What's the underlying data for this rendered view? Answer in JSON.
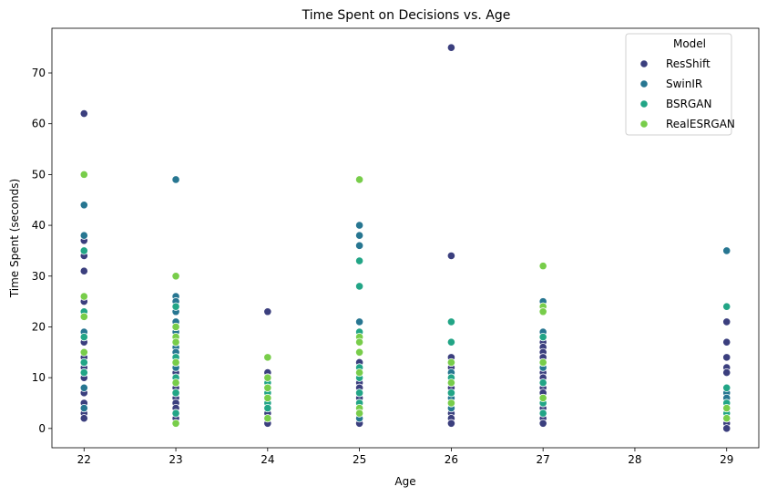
{
  "chart_data": {
    "type": "scatter",
    "title": "Time Spent on Decisions vs. Age",
    "xlabel": "Age",
    "ylabel": "Time Spent (seconds)",
    "xlim": [
      21.65,
      29.35
    ],
    "ylim": [
      -3.8,
      78.8
    ],
    "xticks": [
      22,
      23,
      24,
      25,
      26,
      27,
      28,
      29
    ],
    "yticks": [
      0,
      10,
      20,
      30,
      40,
      50,
      60,
      70
    ],
    "grid": false,
    "legend": {
      "title": "Model",
      "placement": "top-right"
    },
    "series": [
      {
        "name": "ResShift",
        "color": "#3b3f7e",
        "points": [
          [
            22,
            62
          ],
          [
            22,
            37
          ],
          [
            22,
            34
          ],
          [
            22,
            31
          ],
          [
            22,
            25
          ],
          [
            22,
            17
          ],
          [
            22,
            14
          ],
          [
            22,
            12
          ],
          [
            22,
            11
          ],
          [
            22,
            10
          ],
          [
            22,
            7
          ],
          [
            22,
            5
          ],
          [
            22,
            3
          ],
          [
            22,
            2
          ],
          [
            23,
            11
          ],
          [
            23,
            9
          ],
          [
            23,
            8
          ],
          [
            23,
            6
          ],
          [
            23,
            5
          ],
          [
            23,
            4
          ],
          [
            23,
            3
          ],
          [
            23,
            2
          ],
          [
            24,
            23
          ],
          [
            24,
            11
          ],
          [
            24,
            9
          ],
          [
            24,
            7
          ],
          [
            24,
            5
          ],
          [
            24,
            4
          ],
          [
            24,
            3
          ],
          [
            24,
            1
          ],
          [
            25,
            13
          ],
          [
            25,
            10
          ],
          [
            25,
            9
          ],
          [
            25,
            8
          ],
          [
            25,
            6
          ],
          [
            25,
            5
          ],
          [
            25,
            4
          ],
          [
            25,
            3
          ],
          [
            25,
            1
          ],
          [
            26,
            75
          ],
          [
            26,
            34
          ],
          [
            26,
            14
          ],
          [
            26,
            12
          ],
          [
            26,
            8
          ],
          [
            26,
            3
          ],
          [
            26,
            2
          ],
          [
            26,
            1
          ],
          [
            27,
            17
          ],
          [
            27,
            16
          ],
          [
            27,
            15
          ],
          [
            27,
            14
          ],
          [
            27,
            11
          ],
          [
            27,
            10
          ],
          [
            27,
            8
          ],
          [
            27,
            7
          ],
          [
            27,
            5
          ],
          [
            27,
            4
          ],
          [
            27,
            3
          ],
          [
            27,
            2
          ],
          [
            27,
            1
          ],
          [
            29,
            21
          ],
          [
            29,
            17
          ],
          [
            29,
            14
          ],
          [
            29,
            12
          ],
          [
            29,
            11
          ],
          [
            29,
            5
          ],
          [
            29,
            3
          ],
          [
            29,
            1
          ],
          [
            29,
            0
          ]
        ]
      },
      {
        "name": "SwinIR",
        "color": "#277691",
        "points": [
          [
            22,
            44
          ],
          [
            22,
            38
          ],
          [
            22,
            19
          ],
          [
            22,
            13
          ],
          [
            22,
            8
          ],
          [
            22,
            4
          ],
          [
            23,
            49
          ],
          [
            23,
            26
          ],
          [
            23,
            25
          ],
          [
            23,
            23
          ],
          [
            23,
            21
          ],
          [
            23,
            19
          ],
          [
            23,
            16
          ],
          [
            23,
            15
          ],
          [
            23,
            12
          ],
          [
            23,
            7
          ],
          [
            24,
            10
          ],
          [
            24,
            8
          ],
          [
            24,
            6
          ],
          [
            25,
            40
          ],
          [
            25,
            38
          ],
          [
            25,
            36
          ],
          [
            25,
            21
          ],
          [
            25,
            11
          ],
          [
            25,
            7
          ],
          [
            25,
            2
          ],
          [
            26,
            11
          ],
          [
            26,
            9
          ],
          [
            26,
            6
          ],
          [
            26,
            4
          ],
          [
            27,
            25
          ],
          [
            27,
            19
          ],
          [
            27,
            12
          ],
          [
            27,
            9
          ],
          [
            27,
            6
          ],
          [
            29,
            35
          ],
          [
            29,
            7
          ],
          [
            29,
            6
          ],
          [
            29,
            2
          ]
        ]
      },
      {
        "name": "BSRGAN",
        "color": "#22a586",
        "points": [
          [
            22,
            35
          ],
          [
            22,
            23
          ],
          [
            22,
            18
          ],
          [
            22,
            13
          ],
          [
            22,
            11
          ],
          [
            23,
            24
          ],
          [
            23,
            20
          ],
          [
            23,
            17
          ],
          [
            23,
            14
          ],
          [
            23,
            10
          ],
          [
            23,
            7
          ],
          [
            23,
            3
          ],
          [
            24,
            9
          ],
          [
            24,
            7
          ],
          [
            24,
            5
          ],
          [
            24,
            4
          ],
          [
            25,
            33
          ],
          [
            25,
            28
          ],
          [
            25,
            19
          ],
          [
            25,
            12
          ],
          [
            25,
            10
          ],
          [
            25,
            7
          ],
          [
            25,
            5
          ],
          [
            26,
            21
          ],
          [
            26,
            17
          ],
          [
            26,
            10
          ],
          [
            26,
            7
          ],
          [
            27,
            23
          ],
          [
            27,
            18
          ],
          [
            27,
            13
          ],
          [
            27,
            9
          ],
          [
            27,
            5
          ],
          [
            27,
            3
          ],
          [
            29,
            24
          ],
          [
            29,
            8
          ],
          [
            29,
            5
          ],
          [
            29,
            3
          ]
        ]
      },
      {
        "name": "RealESRGAN",
        "color": "#78cd4a",
        "points": [
          [
            22,
            50
          ],
          [
            22,
            26
          ],
          [
            22,
            22
          ],
          [
            22,
            15
          ],
          [
            23,
            30
          ],
          [
            23,
            20
          ],
          [
            23,
            18
          ],
          [
            23,
            17
          ],
          [
            23,
            13
          ],
          [
            23,
            9
          ],
          [
            23,
            1
          ],
          [
            24,
            14
          ],
          [
            24,
            10
          ],
          [
            24,
            8
          ],
          [
            24,
            6
          ],
          [
            24,
            2
          ],
          [
            25,
            49
          ],
          [
            25,
            18
          ],
          [
            25,
            17
          ],
          [
            25,
            15
          ],
          [
            25,
            11
          ],
          [
            25,
            4
          ],
          [
            25,
            3
          ],
          [
            26,
            13
          ],
          [
            26,
            9
          ],
          [
            26,
            5
          ],
          [
            27,
            32
          ],
          [
            27,
            24
          ],
          [
            27,
            23
          ],
          [
            27,
            13
          ],
          [
            27,
            6
          ],
          [
            29,
            4
          ],
          [
            29,
            2
          ]
        ]
      }
    ]
  }
}
